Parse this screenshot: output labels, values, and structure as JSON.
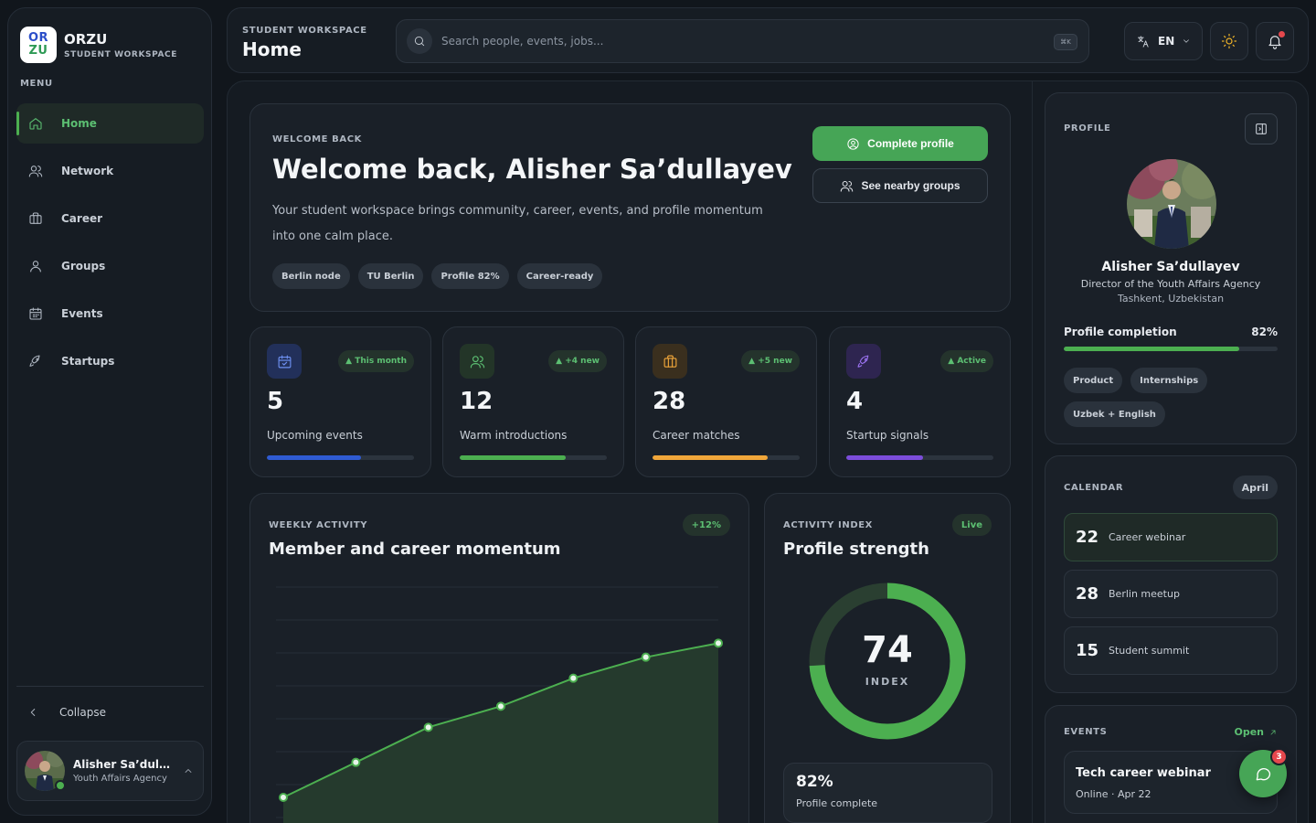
{
  "brand": {
    "logo_top": "OR",
    "logo_bottom": "ZU",
    "name": "ORZU",
    "subtitle": "STUDENT WORKSPACE"
  },
  "sidebar": {
    "menu_label": "MENU",
    "items": [
      {
        "label": "Home",
        "icon": "home-icon",
        "active": true
      },
      {
        "label": "Network",
        "icon": "users-icon"
      },
      {
        "label": "Career",
        "icon": "briefcase-icon"
      },
      {
        "label": "Groups",
        "icon": "user-icon"
      },
      {
        "label": "Events",
        "icon": "calendar-icon"
      },
      {
        "label": "Startups",
        "icon": "rocket-icon"
      }
    ],
    "collapse_label": "Collapse",
    "user": {
      "name": "Alisher Sa’dullayev",
      "role": "Youth Affairs Agency"
    }
  },
  "header": {
    "subtitle": "STUDENT WORKSPACE",
    "title": "Home",
    "search_placeholder": "Search people, events, jobs...",
    "shortcut": "⌘K",
    "language": "EN"
  },
  "welcome": {
    "eyebrow": "WELCOME BACK",
    "title": "Welcome back, Alisher Sa’dullayev",
    "description": "Your student workspace brings community, career, events, and profile momentum into one calm place.",
    "tags": [
      "Berlin node",
      "TU Berlin",
      "Profile 82%",
      "Career-ready"
    ],
    "primary_button": "Complete profile",
    "secondary_button": "See nearby groups"
  },
  "stats": [
    {
      "value": "5",
      "label": "Upcoming events",
      "badge": "▲ This month",
      "progress": 0.64,
      "color": "#2f5bd3",
      "icon_bg": "#22305a",
      "icon_color": "#6d8ff0",
      "icon": "calendar-icon"
    },
    {
      "value": "12",
      "label": "Warm introductions",
      "badge": "▲ +4 new",
      "progress": 0.72,
      "color": "#4caf50",
      "icon_bg": "#233528",
      "icon_color": "#5cbf72",
      "icon": "users-icon"
    },
    {
      "value": "28",
      "label": "Career matches",
      "badge": "▲ +5 new",
      "progress": 0.78,
      "color": "#f0a63a",
      "icon_bg": "#3a2f1e",
      "icon_color": "#f0a63a",
      "icon": "briefcase-icon"
    },
    {
      "value": "4",
      "label": "Startup signals",
      "badge": "▲ Active",
      "progress": 0.52,
      "color": "#7c4ddb",
      "icon_bg": "#2e2550",
      "icon_color": "#9a72f0",
      "icon": "rocket-icon"
    }
  ],
  "weekly_activity": {
    "eyebrow": "WEEKLY ACTIVITY",
    "title": "Member and career momentum",
    "badge": "+12%"
  },
  "chart_data": {
    "type": "area",
    "title": "Member and career momentum",
    "x": [
      1,
      2,
      3,
      4,
      5,
      6,
      7
    ],
    "values": [
      12,
      22,
      32,
      38,
      46,
      52,
      56
    ],
    "ylim": [
      0,
      72
    ],
    "grid": true,
    "color": "#4caf50"
  },
  "activity_index": {
    "eyebrow": "ACTIVITY INDEX",
    "title": "Profile strength",
    "badge": "Live",
    "value": "74",
    "value_number": 74,
    "unit": "INDEX",
    "completion_value": "82%",
    "completion_label": "Profile complete"
  },
  "profile": {
    "eyebrow": "PROFILE",
    "name": "Alisher Sa’dullayev",
    "role": "Director of the Youth Affairs Agency",
    "location": "Tashkent, Uzbekistan",
    "completion_label": "Profile completion",
    "completion_value": "82%",
    "completion_fraction": 0.82,
    "tags": [
      "Product",
      "Internships",
      "Uzbek + English"
    ]
  },
  "calendar": {
    "eyebrow": "CALENDAR",
    "month": "April",
    "items": [
      {
        "day": "22",
        "title": "Career webinar"
      },
      {
        "day": "28",
        "title": "Berlin meetup"
      },
      {
        "day": "15",
        "title": "Student summit"
      }
    ]
  },
  "events": {
    "eyebrow": "EVENTS",
    "open_label": "Open",
    "item": {
      "title": "Tech career webinar",
      "meta": "Online · Apr 22"
    }
  },
  "chat": {
    "badge": "3"
  }
}
